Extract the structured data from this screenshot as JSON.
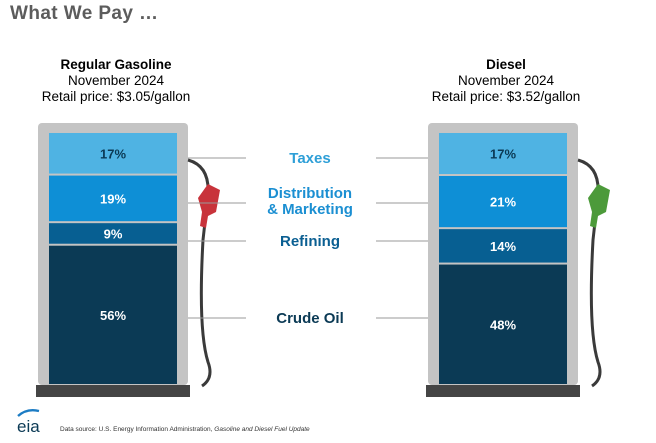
{
  "title": "What We Pay …",
  "pumps": [
    {
      "name": "Regular Gasoline",
      "period": "November 2024",
      "price": "Retail price: $3.05/gallon",
      "nozzle_color": "#c8333b"
    },
    {
      "name": "Diesel",
      "period": "November 2024",
      "price": "Retail price: $3.52/gallon",
      "nozzle_color": "#4c9a3a"
    }
  ],
  "component_labels": {
    "taxes": "Taxes",
    "distribution_line1": "Distribution",
    "distribution_line2": "& Marketing",
    "refining": "Refining",
    "crude": "Crude Oil"
  },
  "chart_data": {
    "type": "bar",
    "stacked": true,
    "categories": [
      "Regular Gasoline",
      "Diesel"
    ],
    "series": [
      {
        "name": "Taxes",
        "values": [
          17,
          17
        ],
        "color": "#4fb3e3",
        "label_color": "#2e9fd7"
      },
      {
        "name": "Distribution & Marketing",
        "values": [
          19,
          21
        ],
        "color": "#0e8fd6",
        "label_color": "#1b8fd2"
      },
      {
        "name": "Refining",
        "values": [
          9,
          14
        ],
        "color": "#075f92",
        "label_color": "#0b5f92"
      },
      {
        "name": "Crude Oil",
        "values": [
          56,
          48
        ],
        "color": "#0b3a55",
        "label_color": "#0b3a55"
      }
    ],
    "value_suffix": "%"
  },
  "colors": {
    "pump_frame": "#c4c4c4",
    "pump_base": "#454545",
    "title": "#5c5c5c",
    "connector": "#9a9a9a",
    "hose": "#3a3a3a"
  },
  "logo_text": "eia",
  "footer": {
    "prefix": "Data source: U.S. Energy Information Administration,",
    "source": "Gasoline and Diesel Fuel Update"
  }
}
